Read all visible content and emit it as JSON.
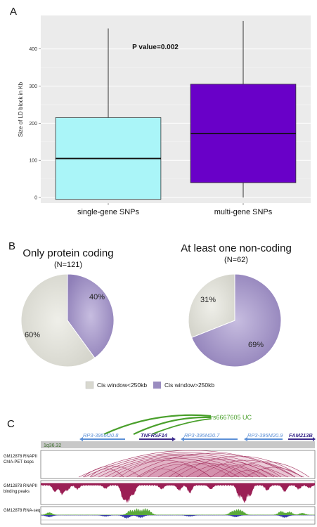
{
  "panel_a": {
    "letter": "A",
    "p_value_text": "P value=0.002",
    "chart_data": {
      "type": "box",
      "ylabel": "Size of LD block in Kb",
      "ylim": [
        -15,
        490
      ],
      "yticks": [
        0,
        100,
        200,
        300,
        400
      ],
      "categories": [
        "single-gene SNPs",
        "multi-gene SNPs"
      ],
      "boxes": [
        {
          "category": "single-gene SNPs",
          "min": -5,
          "q1": -5,
          "median": 105,
          "q3": 215,
          "max": 455,
          "color": "#aaf5f8"
        },
        {
          "category": "multi-gene SNPs",
          "min": 0,
          "q1": 40,
          "median": 172,
          "q3": 305,
          "max": 475,
          "color": "#6900c8"
        }
      ],
      "grid": true,
      "background": "#ebebeb"
    }
  },
  "panel_b": {
    "letter": "B",
    "chart_data": [
      {
        "type": "pie",
        "title": "Only protein coding",
        "subtitle": "(N=121)",
        "slices": [
          {
            "label": "Cis window<250kb",
            "value": 60,
            "text": "60%"
          },
          {
            "label": "Cis window>250kb",
            "value": 40,
            "text": "40%"
          }
        ]
      },
      {
        "type": "pie",
        "title": "At least one non-coding",
        "subtitle": "(N=62)",
        "slices": [
          {
            "label": "Cis window<250kb",
            "value": 31,
            "text": "31%"
          },
          {
            "label": "Cis window>250kb",
            "value": 69,
            "text": "69%"
          }
        ]
      }
    ],
    "legend": [
      {
        "label": "Cis window<250kb",
        "color": "#d8d8cf"
      },
      {
        "label": "Cis window>250kb",
        "color": "#9a8cc0"
      }
    ],
    "colors": {
      "small": "#d4d4cb",
      "large": "#8f7fb8"
    }
  },
  "panel_c": {
    "letter": "C",
    "snp_label": "rs6667605 UC",
    "band_label": "1q36.32",
    "genes": [
      {
        "name": "RP3-395M20.8",
        "color": "#5b8fd6"
      },
      {
        "name": "TNFRSF14",
        "color": "#3b2a8c"
      },
      {
        "name": "RP3-395M20.7",
        "color": "#5b8fd6"
      },
      {
        "name": "RP3-395M20.9",
        "color": "#5b8fd6"
      },
      {
        "name": "FAM213B",
        "color": "#3b2a8c"
      }
    ],
    "tracks": [
      {
        "line1": "GM12878 RNAPII",
        "line2": "ChIA-PET loops"
      },
      {
        "line1": "GM12878 RNAPII",
        "line2": "binding peaks"
      },
      {
        "line1": "GM12878 RNA-seq",
        "line2": ""
      }
    ]
  }
}
